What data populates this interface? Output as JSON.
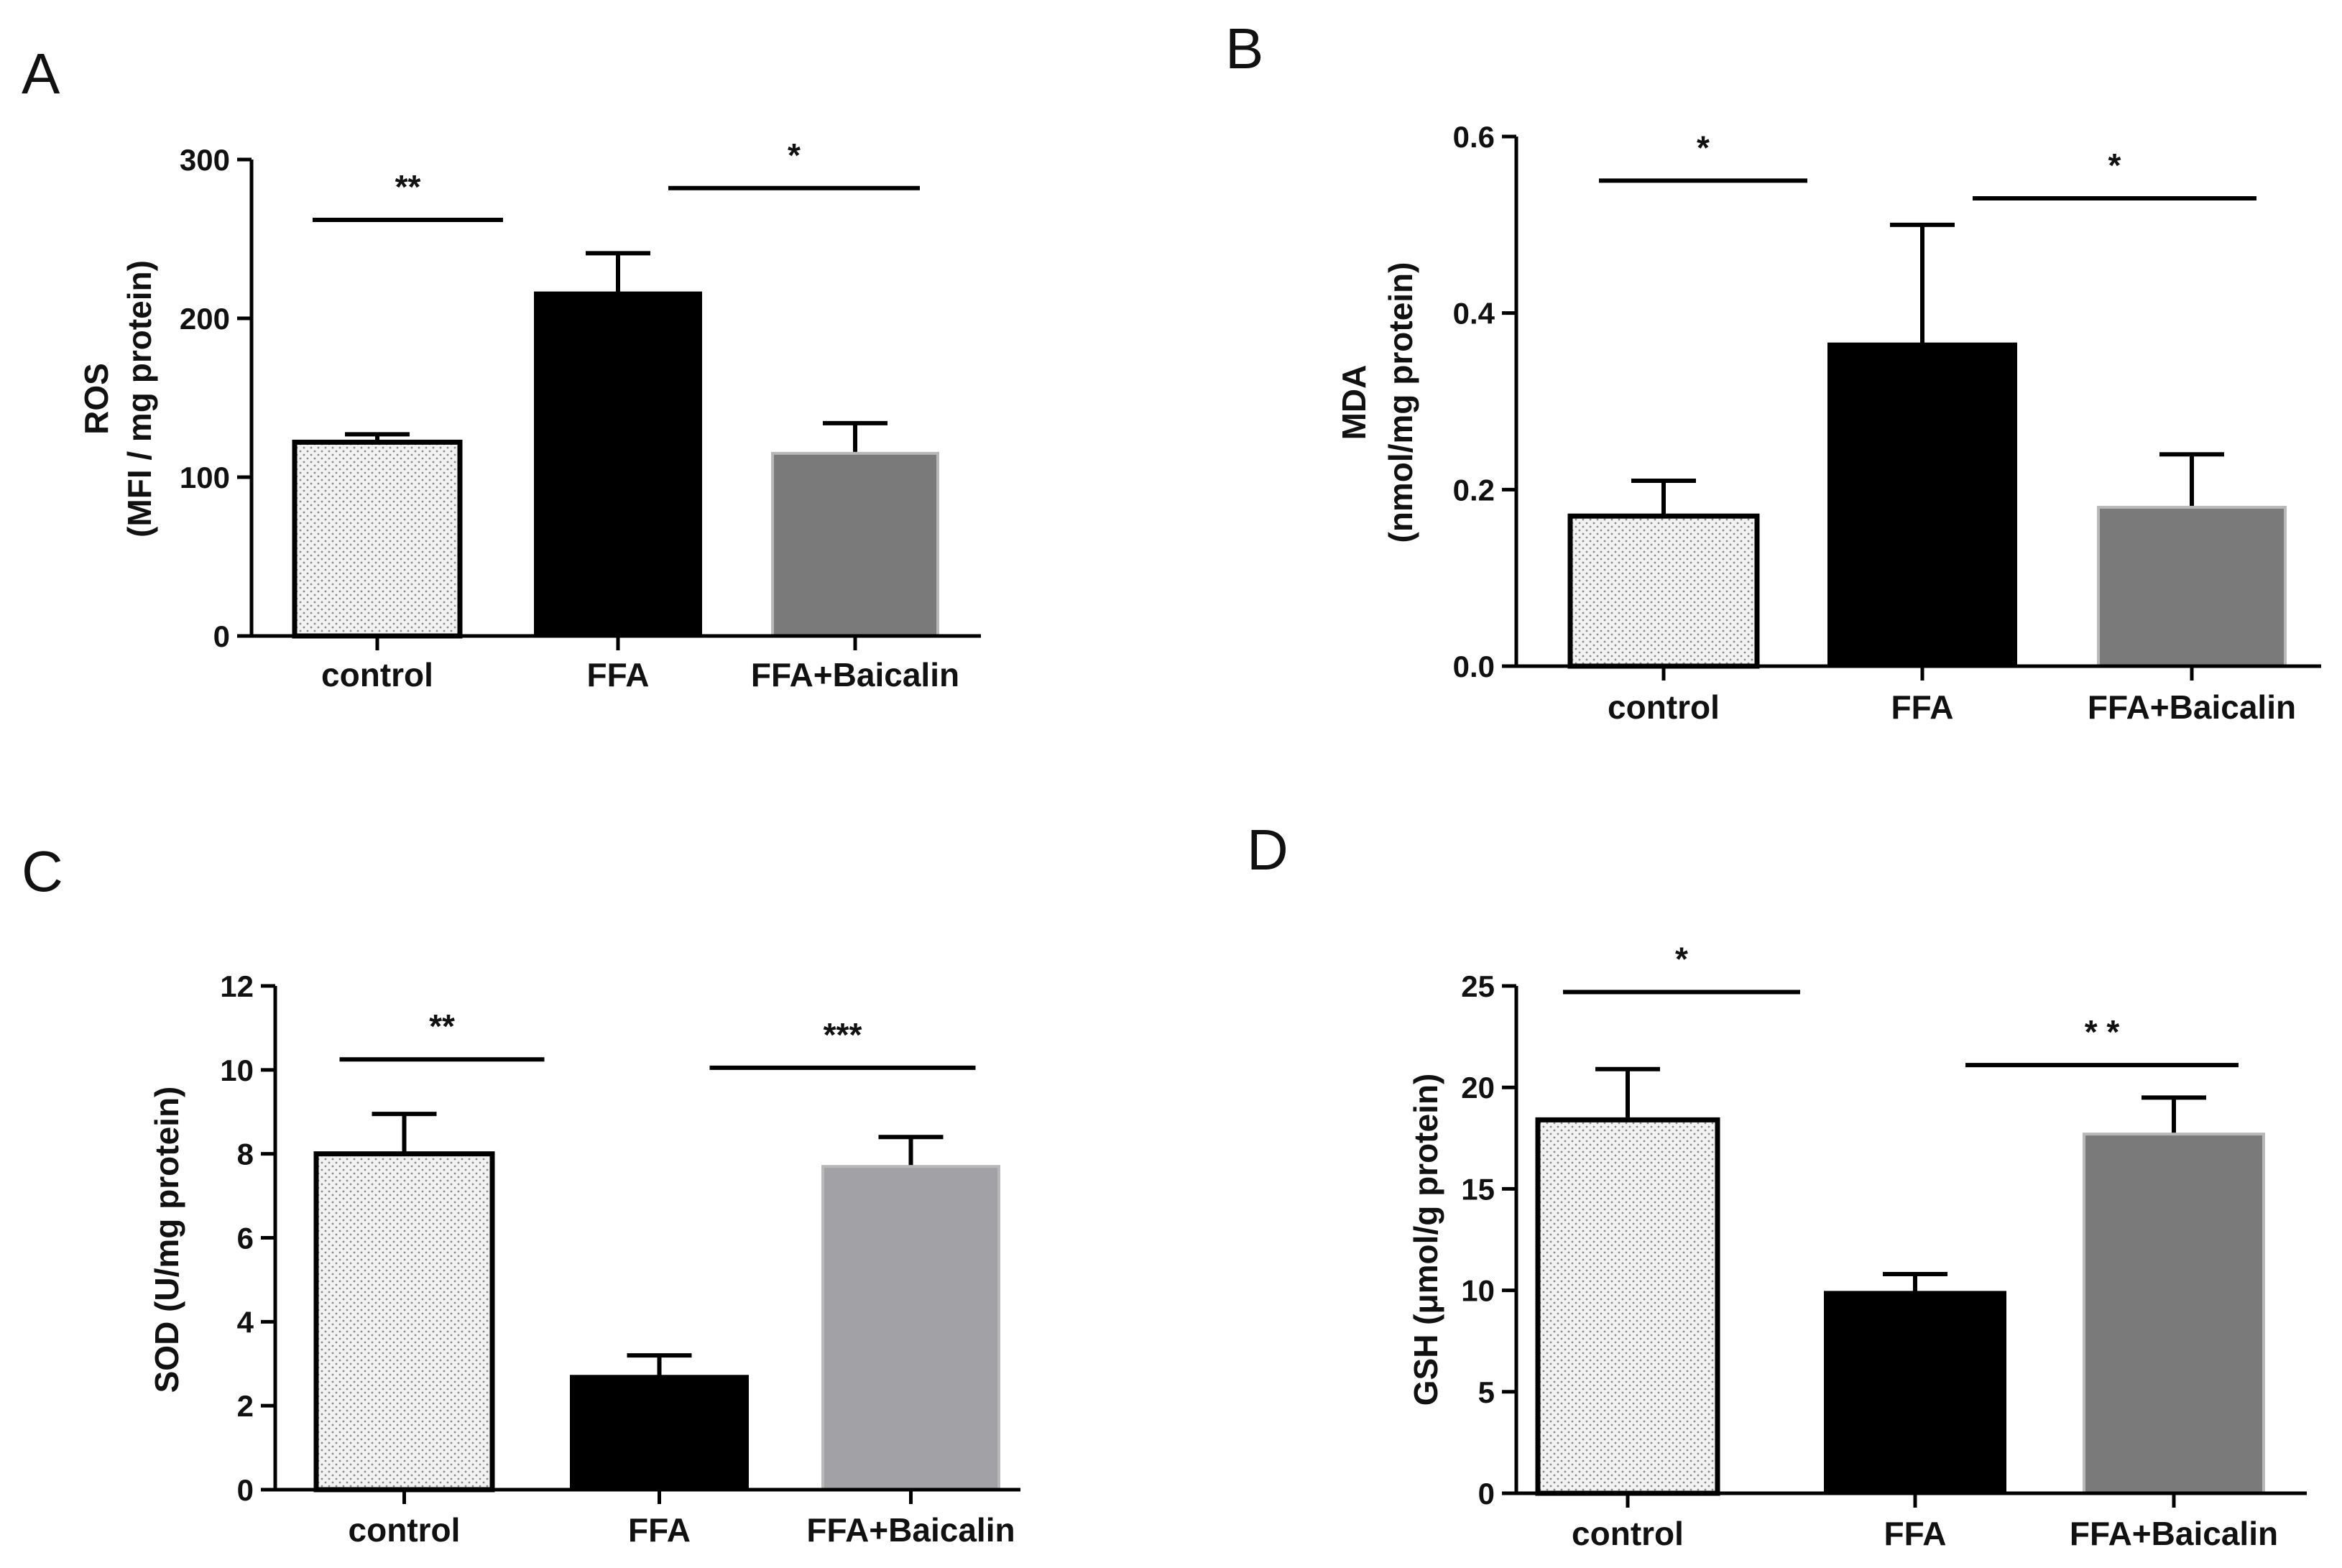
{
  "chart_data": [
    {
      "panel": "A",
      "type": "bar",
      "categories": [
        "control",
        "FFA",
        "FFA+Baicalin"
      ],
      "values": [
        122,
        216,
        115
      ],
      "errors": [
        5,
        25,
        19
      ],
      "ylabel_lines": [
        "ROS",
        "(MFI / mg protein)"
      ],
      "ylim": [
        0,
        300
      ],
      "yticks": [
        {
          "value": 0,
          "label": "0"
        },
        {
          "value": 100,
          "label": "100"
        },
        {
          "value": 200,
          "label": "200"
        },
        {
          "value": 300,
          "label": "300"
        }
      ],
      "bar_styles": [
        "dotted",
        "#000000",
        "#7a7a7a"
      ],
      "significance": [
        {
          "from": 0,
          "to": 1,
          "level": 262,
          "label": "**"
        },
        {
          "from": 1,
          "to": 2,
          "level": 282,
          "label": "*"
        }
      ]
    },
    {
      "panel": "B",
      "type": "bar",
      "categories": [
        "control",
        "FFA",
        "FFA+Baicalin"
      ],
      "values": [
        0.17,
        0.365,
        0.18
      ],
      "errors": [
        0.04,
        0.135,
        0.06
      ],
      "ylabel_lines": [
        "MDA",
        "(nmol/mg protein)"
      ],
      "ylim": [
        0,
        0.6
      ],
      "yticks": [
        {
          "value": 0,
          "label": "0.0"
        },
        {
          "value": 0.2,
          "label": "0.2"
        },
        {
          "value": 0.4,
          "label": "0.4"
        },
        {
          "value": 0.6,
          "label": "0.6"
        }
      ],
      "bar_styles": [
        "dotted",
        "#000000",
        "#7a7a7a"
      ],
      "significance": [
        {
          "from": 0,
          "to": 1,
          "level": 0.55,
          "label": "*"
        },
        {
          "from": 1,
          "to": 2,
          "level": 0.53,
          "label": "*"
        }
      ]
    },
    {
      "panel": "C",
      "type": "bar",
      "categories": [
        "control",
        "FFA",
        "FFA+Baicalin"
      ],
      "values": [
        8.0,
        2.7,
        7.7
      ],
      "errors": [
        0.95,
        0.5,
        0.7
      ],
      "ylabel_lines": [
        "SOD  (U/mg protein)"
      ],
      "ylim": [
        0,
        12
      ],
      "yticks": [
        {
          "value": 0,
          "label": "0"
        },
        {
          "value": 2,
          "label": "2"
        },
        {
          "value": 4,
          "label": "4"
        },
        {
          "value": 6,
          "label": "6"
        },
        {
          "value": 8,
          "label": "8"
        },
        {
          "value": 10,
          "label": "10"
        },
        {
          "value": 12,
          "label": "12"
        }
      ],
      "bar_styles": [
        "dotted",
        "#000000",
        "#a2a2a6"
      ],
      "significance": [
        {
          "from": 0,
          "to": 1,
          "level": 10.25,
          "label": "**"
        },
        {
          "from": 1,
          "to": 2,
          "level": 10.05,
          "label": "***"
        }
      ]
    },
    {
      "panel": "D",
      "type": "bar",
      "categories": [
        "control",
        "FFA",
        "FFA+Baicalin"
      ],
      "values": [
        18.4,
        9.9,
        17.7
      ],
      "errors": [
        2.5,
        0.9,
        1.8
      ],
      "ylabel_lines": [
        "GSH (μmol/g protein)"
      ],
      "ylim": [
        0,
        25
      ],
      "yticks": [
        {
          "value": 0,
          "label": "0"
        },
        {
          "value": 5,
          "label": "5"
        },
        {
          "value": 10,
          "label": "10"
        },
        {
          "value": 15,
          "label": "15"
        },
        {
          "value": 20,
          "label": "20"
        },
        {
          "value": 25,
          "label": "25"
        }
      ],
      "bar_styles": [
        "dotted",
        "#000000",
        "#7a7a7a"
      ],
      "significance": [
        {
          "from": 0,
          "to": 1,
          "level": 24.7,
          "label": "*"
        },
        {
          "from": 1,
          "to": 2,
          "level": 21.1,
          "label": "* *"
        }
      ]
    }
  ]
}
